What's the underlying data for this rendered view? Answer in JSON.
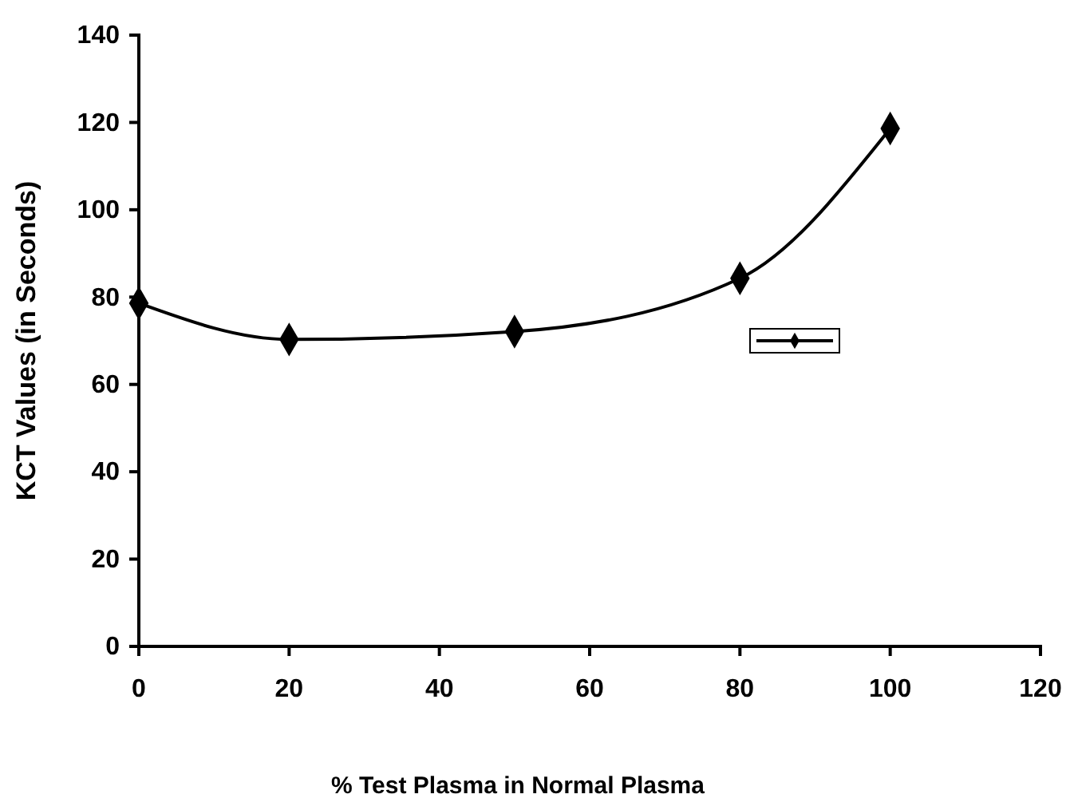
{
  "chart_data": {
    "type": "line",
    "xlabel": "% Test Plasma in Normal Plasma",
    "ylabel": "KCT Values (in Seconds)",
    "x": [
      0,
      20,
      50,
      80,
      100
    ],
    "series": [
      {
        "color": "#000000",
        "values": [
          78.6,
          70.3,
          72.1,
          84.3,
          118.6
        ]
      }
    ],
    "xlim": [
      0,
      120
    ],
    "xticks": [
      0,
      20,
      40,
      60,
      80,
      100,
      120
    ],
    "ylim": [
      0,
      140
    ],
    "yticks": [
      0,
      20,
      40,
      60,
      80,
      100,
      120,
      140
    ],
    "grid": false,
    "marker": "diamond",
    "line_style": "solid"
  }
}
